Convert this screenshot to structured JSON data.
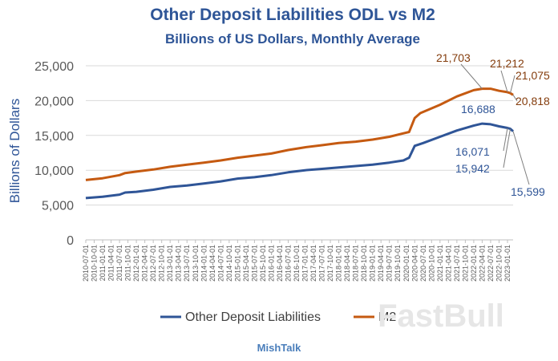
{
  "chart_data": {
    "type": "line",
    "title": "Other Deposit Liabilities ODL vs M2",
    "subtitle": "Billions of US Dollars, Monthly Average",
    "xlabel": "",
    "ylabel": "Billions of Dollars",
    "ylim": [
      0,
      25000
    ],
    "yticks": [
      "0",
      "5,000",
      "10,000",
      "15,000",
      "20,000",
      "25,000"
    ],
    "grid": "horizontal",
    "legend_position": "bottom",
    "source": "MishTalk",
    "watermark": "FastBull",
    "x_tick_labels": [
      "2010-07-01",
      "2010-10-01",
      "2011-01-01",
      "2011-04-01",
      "2011-07-01",
      "2011-10-01",
      "2012-01-01",
      "2012-04-01",
      "2012-07-01",
      "2012-10-01",
      "2013-01-01",
      "2013-04-01",
      "2013-07-01",
      "2013-10-01",
      "2014-01-01",
      "2014-04-01",
      "2014-07-01",
      "2014-10-01",
      "2015-01-01",
      "2015-04-01",
      "2015-07-01",
      "2015-10-01",
      "2016-01-01",
      "2016-04-01",
      "2016-07-01",
      "2016-10-01",
      "2017-01-01",
      "2017-04-01",
      "2017-07-01",
      "2017-10-01",
      "2018-01-01",
      "2018-04-01",
      "2018-07-01",
      "2018-10-01",
      "2019-01-01",
      "2019-04-01",
      "2019-07-01",
      "2019-10-01",
      "2020-01-01",
      "2020-04-01",
      "2020-07-01",
      "2020-10-01",
      "2021-01-01",
      "2021-04-01",
      "2021-07-01",
      "2021-10-01",
      "2022-01-01",
      "2022-04-01",
      "2022-07-01",
      "2022-10-01",
      "2023-01-01"
    ],
    "x_start": "2010-07",
    "x_end": "2023-03",
    "series": [
      {
        "name": "Other Deposit Liabilities",
        "color": "#2F5597",
        "points": [
          [
            "2010-07",
            6000
          ],
          [
            "2011-01",
            6200
          ],
          [
            "2011-07",
            6500
          ],
          [
            "2011-09",
            6800
          ],
          [
            "2012-01",
            6900
          ],
          [
            "2012-07",
            7200
          ],
          [
            "2013-01",
            7600
          ],
          [
            "2013-07",
            7800
          ],
          [
            "2014-01",
            8100
          ],
          [
            "2014-07",
            8400
          ],
          [
            "2015-01",
            8800
          ],
          [
            "2015-07",
            9000
          ],
          [
            "2016-01",
            9300
          ],
          [
            "2016-07",
            9700
          ],
          [
            "2017-01",
            10000
          ],
          [
            "2017-07",
            10200
          ],
          [
            "2018-01",
            10400
          ],
          [
            "2018-07",
            10600
          ],
          [
            "2019-01",
            10800
          ],
          [
            "2019-07",
            11100
          ],
          [
            "2019-12",
            11400
          ],
          [
            "2020-02",
            11800
          ],
          [
            "2020-04",
            13500
          ],
          [
            "2020-07",
            13900
          ],
          [
            "2021-01",
            14800
          ],
          [
            "2021-07",
            15700
          ],
          [
            "2022-01",
            16400
          ],
          [
            "2022-04",
            16688
          ],
          [
            "2022-07",
            16600
          ],
          [
            "2022-10",
            16300
          ],
          [
            "2023-01",
            16071
          ],
          [
            "2023-02",
            15942
          ],
          [
            "2023-03",
            15599
          ]
        ]
      },
      {
        "name": "M2",
        "color": "#C55A11",
        "points": [
          [
            "2010-07",
            8600
          ],
          [
            "2011-01",
            8850
          ],
          [
            "2011-07",
            9300
          ],
          [
            "2011-09",
            9600
          ],
          [
            "2012-01",
            9800
          ],
          [
            "2012-07",
            10100
          ],
          [
            "2013-01",
            10500
          ],
          [
            "2013-07",
            10800
          ],
          [
            "2014-01",
            11100
          ],
          [
            "2014-07",
            11400
          ],
          [
            "2015-01",
            11800
          ],
          [
            "2015-07",
            12100
          ],
          [
            "2016-01",
            12400
          ],
          [
            "2016-07",
            12900
          ],
          [
            "2017-01",
            13300
          ],
          [
            "2017-07",
            13600
          ],
          [
            "2018-01",
            13900
          ],
          [
            "2018-07",
            14100
          ],
          [
            "2019-01",
            14400
          ],
          [
            "2019-07",
            14800
          ],
          [
            "2019-12",
            15300
          ],
          [
            "2020-02",
            15500
          ],
          [
            "2020-04",
            17500
          ],
          [
            "2020-06",
            18200
          ],
          [
            "2021-01",
            19400
          ],
          [
            "2021-07",
            20600
          ],
          [
            "2022-01",
            21500
          ],
          [
            "2022-04",
            21703
          ],
          [
            "2022-07",
            21700
          ],
          [
            "2022-10",
            21400
          ],
          [
            "2023-01",
            21212
          ],
          [
            "2023-02",
            21075
          ],
          [
            "2023-03",
            20818
          ]
        ]
      }
    ],
    "annotations": [
      {
        "text": "21,703",
        "series": "M2"
      },
      {
        "text": "21,212",
        "series": "M2"
      },
      {
        "text": "21,075",
        "series": "M2"
      },
      {
        "text": "20,818",
        "series": "M2"
      },
      {
        "text": "16,688",
        "series": "Other Deposit Liabilities"
      },
      {
        "text": "16,071",
        "series": "Other Deposit Liabilities"
      },
      {
        "text": "15,942",
        "series": "Other Deposit Liabilities"
      },
      {
        "text": "15,599",
        "series": "Other Deposit Liabilities"
      }
    ]
  }
}
